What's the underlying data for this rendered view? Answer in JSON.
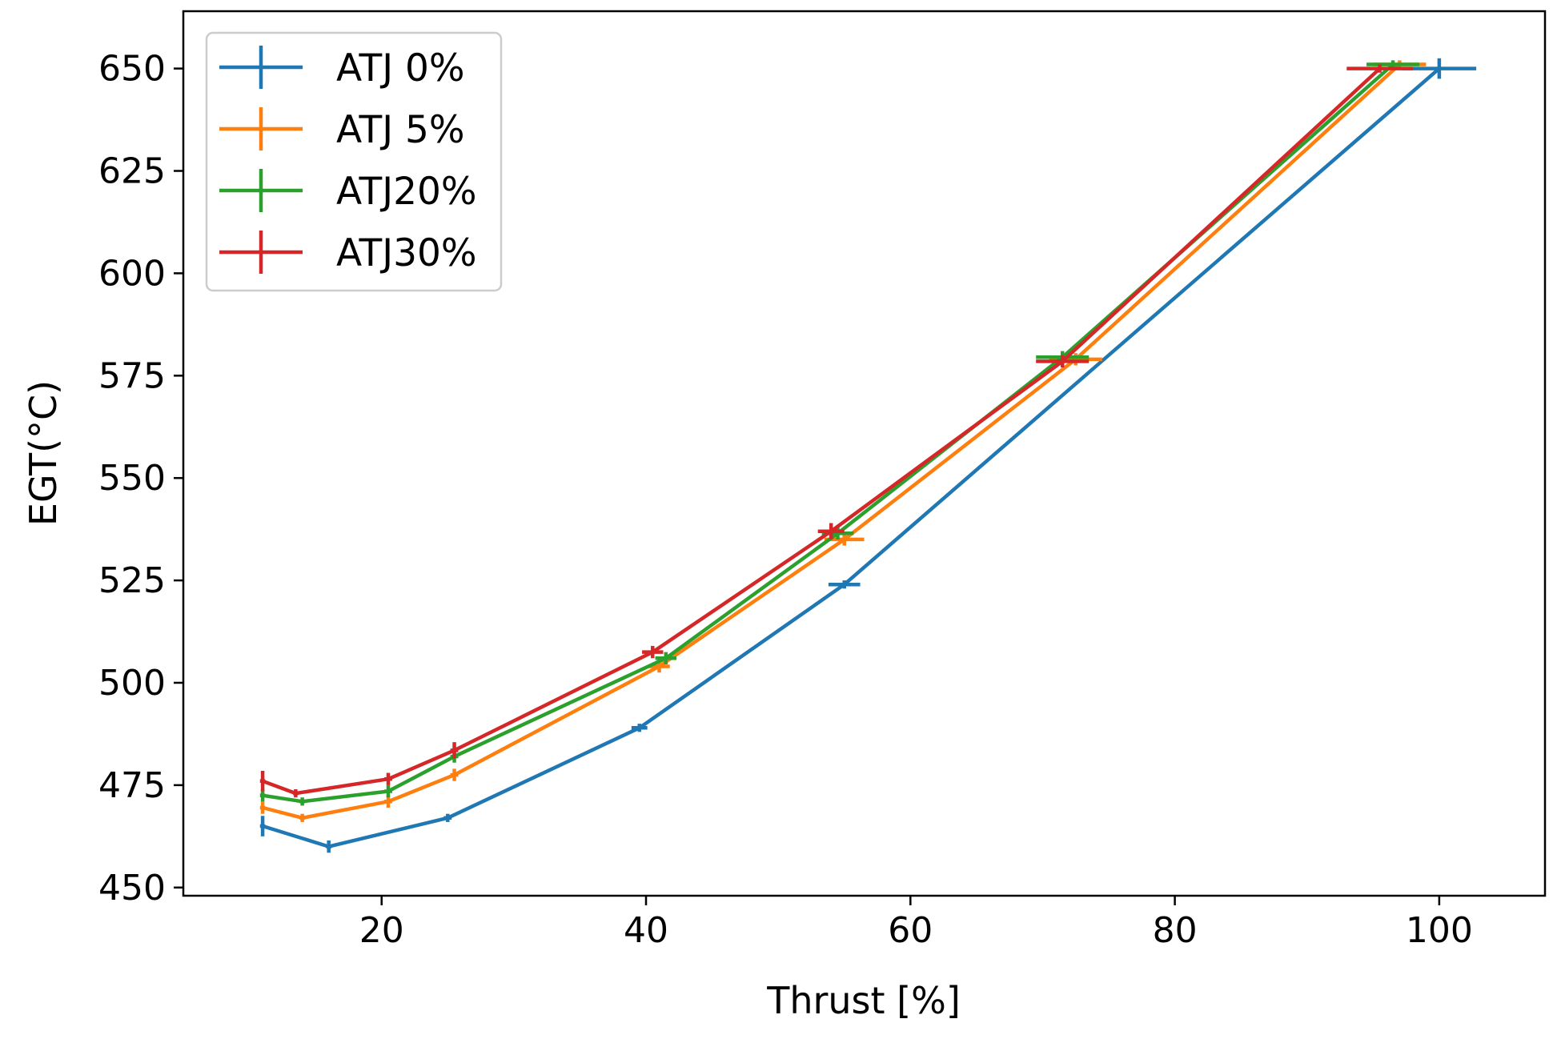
{
  "chart_data": {
    "type": "line",
    "title": "",
    "xlabel": "Thrust [%]",
    "ylabel": "EGT(°C)",
    "xlim": [
      5,
      108
    ],
    "ylim": [
      448,
      664
    ],
    "x_ticks": [
      20,
      40,
      60,
      80,
      100
    ],
    "y_ticks": [
      450,
      475,
      500,
      525,
      550,
      575,
      600,
      625,
      650
    ],
    "grid": false,
    "legend_position": "upper-left",
    "series": [
      {
        "name": "ATJ 0%",
        "color": "#1f77b4",
        "x": [
          11,
          16,
          25,
          39.5,
          55,
          100
        ],
        "y": [
          465,
          460,
          467,
          489,
          524,
          650
        ],
        "xerr": [
          0.2,
          0.2,
          0.3,
          0.6,
          1.2,
          2.8
        ],
        "yerr": [
          2.5,
          1.5,
          1.0,
          1.0,
          1.0,
          2.5
        ]
      },
      {
        "name": "ATJ 5%",
        "color": "#ff7f0e",
        "x": [
          11,
          14,
          20.5,
          25.5,
          41,
          55,
          72.5,
          97
        ],
        "y": [
          469.5,
          467,
          471,
          477.5,
          504,
          535,
          579,
          651
        ],
        "xerr": [
          0.2,
          0.2,
          0.3,
          0.3,
          0.8,
          1.5,
          2.0,
          2.0
        ],
        "yerr": [
          1.5,
          1.0,
          1.5,
          1.5,
          1.5,
          1.5,
          1.5,
          1.0
        ]
      },
      {
        "name": "ATJ20%",
        "color": "#2ca02c",
        "x": [
          11,
          14,
          20.5,
          25.5,
          41.5,
          54.5,
          71.5,
          96.5
        ],
        "y": [
          472.5,
          471,
          473.5,
          482,
          506,
          536.5,
          579.5,
          651
        ],
        "xerr": [
          0.2,
          0.2,
          0.3,
          0.3,
          0.8,
          1.2,
          2.0,
          2.0
        ],
        "yerr": [
          1.5,
          1.0,
          1.5,
          1.5,
          1.5,
          1.5,
          1.5,
          1.0
        ]
      },
      {
        "name": "ATJ30%",
        "color": "#d62728",
        "x": [
          11,
          13.5,
          20.5,
          25.5,
          40.5,
          54,
          71.5,
          95.5
        ],
        "y": [
          476,
          473,
          476.5,
          483.5,
          507.5,
          537,
          578.5,
          650
        ],
        "xerr": [
          0.2,
          0.2,
          0.3,
          0.3,
          0.8,
          1.0,
          2.0,
          2.5
        ],
        "yerr": [
          2.5,
          1.0,
          1.5,
          2.0,
          1.5,
          2.0,
          1.5,
          1.0
        ]
      }
    ]
  }
}
